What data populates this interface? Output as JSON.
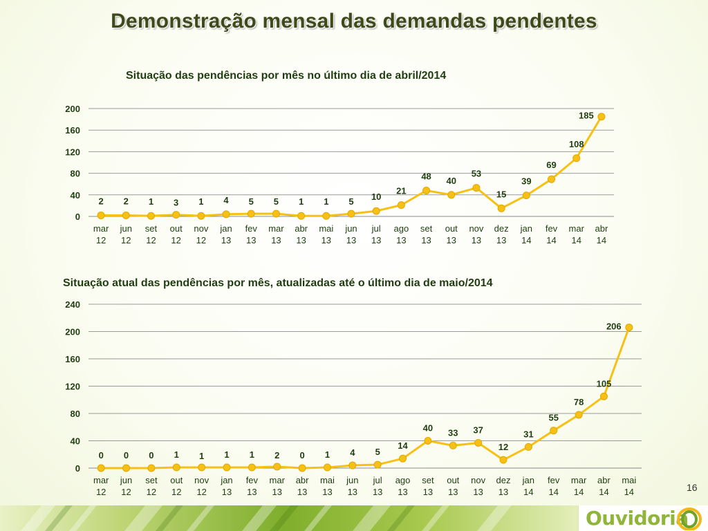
{
  "page": {
    "title": "Demonstração mensal das demandas pendentes",
    "page_number": "16",
    "logo_text": "Ouvidoria"
  },
  "chart_data": [
    {
      "type": "line",
      "title": "Situação das pendências por mês no último dia de abril/2014",
      "categories": [
        "mar 12",
        "jun 12",
        "set 12",
        "out 12",
        "nov 12",
        "jan 13",
        "fev 13",
        "mar 13",
        "abr 13",
        "mai 13",
        "jun 13",
        "jul 13",
        "ago 13",
        "set 13",
        "out 13",
        "nov 13",
        "dez 13",
        "jan 14",
        "fev 14",
        "mar 14",
        "abr 14"
      ],
      "series": [
        {
          "values": [
            2,
            2,
            1,
            3,
            1,
            4,
            5,
            5,
            1,
            1,
            5,
            10,
            21,
            48,
            40,
            53,
            15,
            39,
            69,
            108,
            185
          ]
        }
      ],
      "ylim": [
        0,
        200
      ],
      "yticks": [
        0,
        40,
        80,
        120,
        160,
        200
      ],
      "grid": true,
      "data_labels": true,
      "line_color": "#f6c015"
    },
    {
      "type": "line",
      "title": "Situação atual das pendências por mês, atualizadas até o último dia de maio/2014",
      "categories": [
        "mar 12",
        "jun 12",
        "set 12",
        "out 12",
        "nov 12",
        "jan 13",
        "fev 13",
        "mar 13",
        "abr 13",
        "mai 13",
        "jun 13",
        "jul 13",
        "ago 13",
        "set 13",
        "out 13",
        "nov 13",
        "dez 13",
        "jan 14",
        "fev 14",
        "mar 14",
        "abr 14",
        "mai 14"
      ],
      "series": [
        {
          "values": [
            0,
            0,
            0,
            1,
            1,
            1,
            1,
            2,
            0,
            1,
            4,
            5,
            14,
            40,
            33,
            37,
            12,
            31,
            55,
            78,
            105,
            206
          ]
        }
      ],
      "ylim": [
        0,
        240
      ],
      "yticks": [
        0,
        40,
        80,
        120,
        160,
        200,
        240
      ],
      "grid": true,
      "data_labels": true,
      "line_color": "#f6c015"
    }
  ]
}
